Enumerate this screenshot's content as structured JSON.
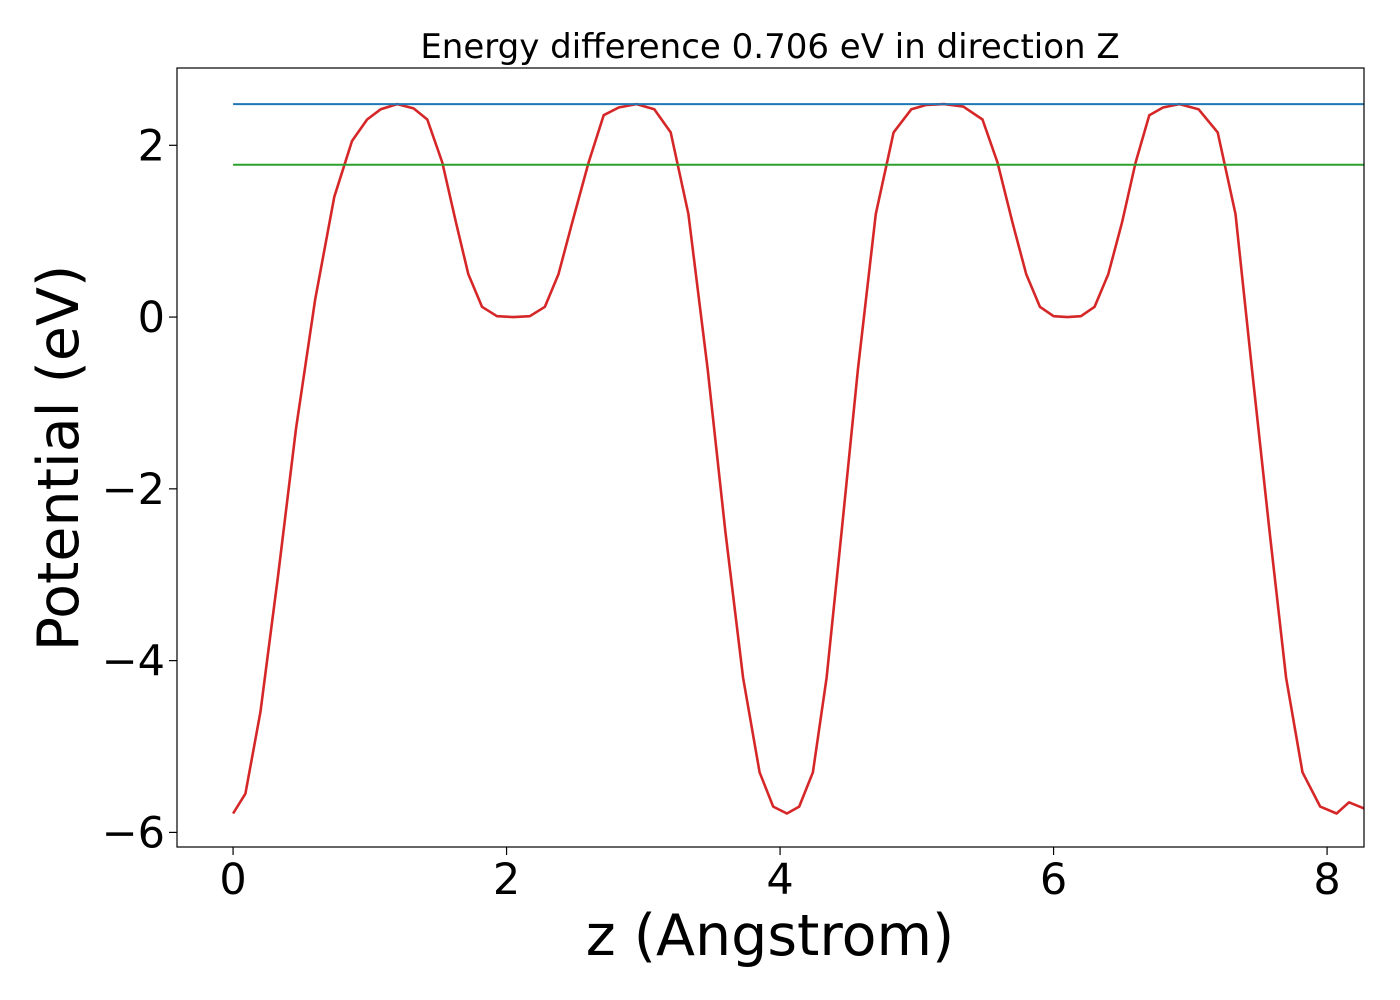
{
  "chart_data": {
    "type": "line",
    "title": "Energy difference 0.706 eV in direction Z",
    "xlabel": "z (Angstrom)",
    "ylabel": "Potential (eV)",
    "xlim": [
      -0.41,
      8.27
    ],
    "ylim": [
      -6.17,
      2.9
    ],
    "grid": false,
    "legend": "none",
    "xticks": [
      {
        "value": 0,
        "label": "0"
      },
      {
        "value": 2,
        "label": "2"
      },
      {
        "value": 4,
        "label": "4"
      },
      {
        "value": 6,
        "label": "6"
      },
      {
        "value": 8,
        "label": "8"
      }
    ],
    "yticks": [
      {
        "value": 2,
        "label": "2"
      },
      {
        "value": 0,
        "label": "0"
      },
      {
        "value": -2,
        "label": "−2"
      },
      {
        "value": -4,
        "label": "−4"
      },
      {
        "value": -6,
        "label": "−6"
      }
    ],
    "series": [
      {
        "color": "#d62728",
        "x": [
          0.0,
          0.09,
          0.2,
          0.33,
          0.46,
          0.6,
          0.74,
          0.87,
          0.98,
          1.08,
          1.2,
          1.32,
          1.42,
          1.53,
          1.63,
          1.72,
          1.82,
          1.93,
          2.05,
          2.17,
          2.28,
          2.38,
          2.48,
          2.6,
          2.71,
          2.82,
          2.95,
          3.08,
          3.2,
          3.33,
          3.47,
          3.6,
          3.73,
          3.85,
          3.95,
          4.05,
          4.14,
          4.24,
          4.34,
          4.45,
          4.57,
          4.7,
          4.83,
          4.96,
          5.07,
          5.2,
          5.34,
          5.48,
          5.59,
          5.7,
          5.8,
          5.9,
          6.0,
          6.1,
          6.2,
          6.3,
          6.4,
          6.5,
          6.6,
          6.7,
          6.8,
          6.92,
          7.06,
          7.2,
          7.33,
          7.45,
          7.58,
          7.7,
          7.82,
          7.95,
          8.07,
          8.16,
          8.27
        ],
        "y": [
          -5.78,
          -5.55,
          -4.6,
          -3.0,
          -1.3,
          0.2,
          1.4,
          2.05,
          2.3,
          2.42,
          2.48,
          2.43,
          2.3,
          1.8,
          1.1,
          0.5,
          0.12,
          0.01,
          0.0,
          0.01,
          0.12,
          0.5,
          1.1,
          1.8,
          2.35,
          2.44,
          2.48,
          2.42,
          2.15,
          1.2,
          -0.6,
          -2.5,
          -4.2,
          -5.3,
          -5.7,
          -5.78,
          -5.7,
          -5.3,
          -4.2,
          -2.5,
          -0.6,
          1.2,
          2.15,
          2.42,
          2.47,
          2.48,
          2.45,
          2.3,
          1.8,
          1.1,
          0.5,
          0.12,
          0.01,
          0.0,
          0.01,
          0.12,
          0.5,
          1.1,
          1.8,
          2.35,
          2.44,
          2.48,
          2.42,
          2.15,
          1.2,
          -0.6,
          -2.5,
          -4.2,
          -5.3,
          -5.7,
          -5.78,
          -5.65,
          -5.72
        ]
      },
      {
        "color": "#1f77b4",
        "x": [
          0.0,
          8.27
        ],
        "y": [
          2.48,
          2.48
        ]
      },
      {
        "color": "#2ca02c",
        "x": [
          0.0,
          8.27
        ],
        "y": [
          1.774,
          1.774
        ]
      }
    ]
  }
}
